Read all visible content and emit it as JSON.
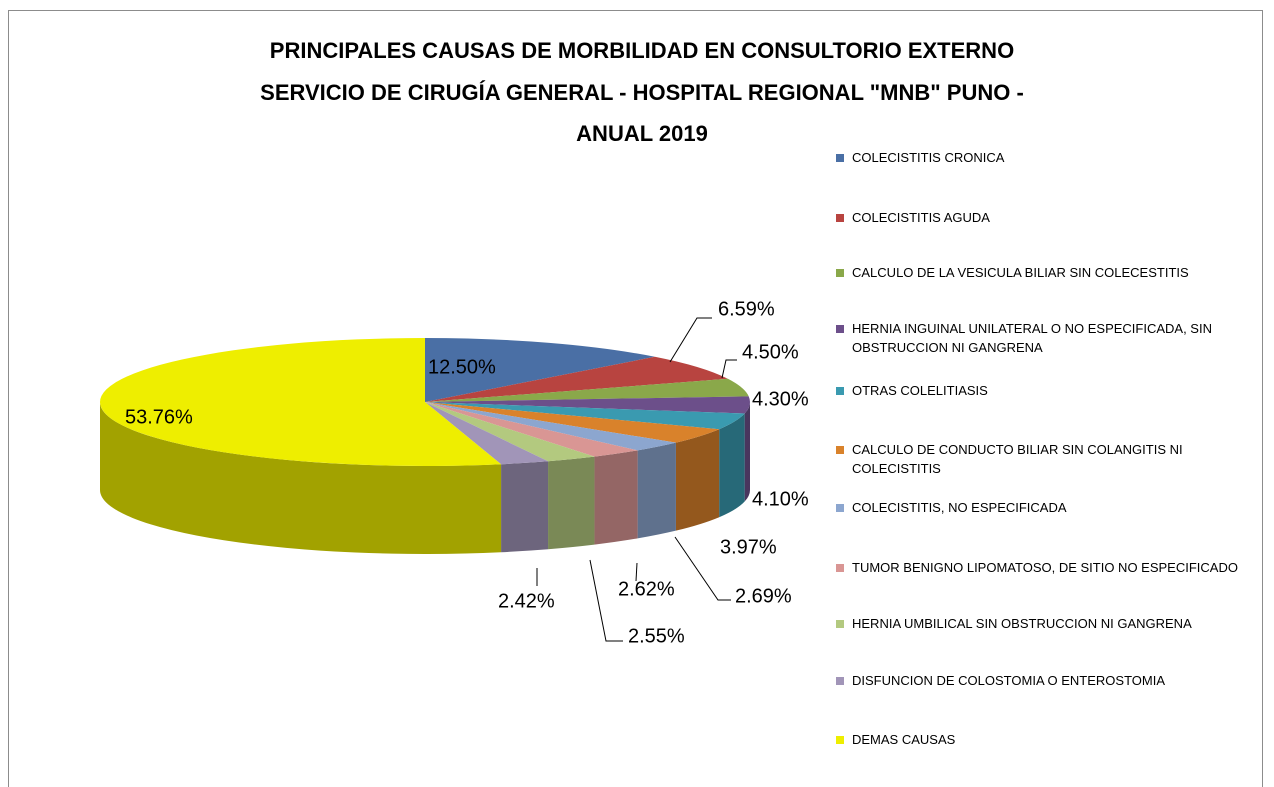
{
  "chart_data": {
    "type": "pie",
    "title": [
      "PRINCIPALES CAUSAS DE MORBILIDAD EN CONSULTORIO EXTERNO",
      "SERVICIO DE CIRUGÍA GENERAL - HOSPITAL REGIONAL \"MNB\" PUNO -",
      "ANUAL 2019"
    ],
    "categories": [
      "COLECISTITIS CRONICA",
      "COLECISTITIS AGUDA",
      "CALCULO DE LA VESICULA BILIAR SIN COLECESTITIS",
      "HERNIA INGUINAL UNILATERAL O NO ESPECIFICADA, SIN OBSTRUCCION NI GANGRENA",
      "OTRAS COLELITIASIS",
      "CALCULO DE CONDUCTO BILIAR SIN COLANGITIS NI COLECISTITIS",
      "COLECISTITIS, NO ESPECIFICADA",
      "TUMOR BENIGNO LIPOMATOSO, DE SITIO NO ESPECIFICADO",
      "HERNIA UMBILICAL SIN OBSTRUCCION NI GANGRENA",
      "DISFUNCION DE COLOSTOMIA O ENTEROSTOMIA",
      "DEMAS CAUSAS"
    ],
    "values": [
      12.5,
      6.59,
      4.5,
      4.3,
      4.1,
      3.97,
      2.69,
      2.62,
      2.55,
      2.42,
      53.76
    ],
    "value_labels": [
      "12.50%",
      "6.59%",
      "4.50%",
      "4.30%",
      "4.10%",
      "3.97%",
      "2.69%",
      "2.62%",
      "2.55%",
      "2.42%",
      "53.76%"
    ],
    "colors": [
      "#4a6fa5",
      "#b84440",
      "#8aa84a",
      "#6c4f8a",
      "#3a9ab0",
      "#d9822b",
      "#8ca6cf",
      "#d99694",
      "#b3c97f",
      "#a195b8",
      "#eeee00"
    ],
    "legend": "right"
  }
}
